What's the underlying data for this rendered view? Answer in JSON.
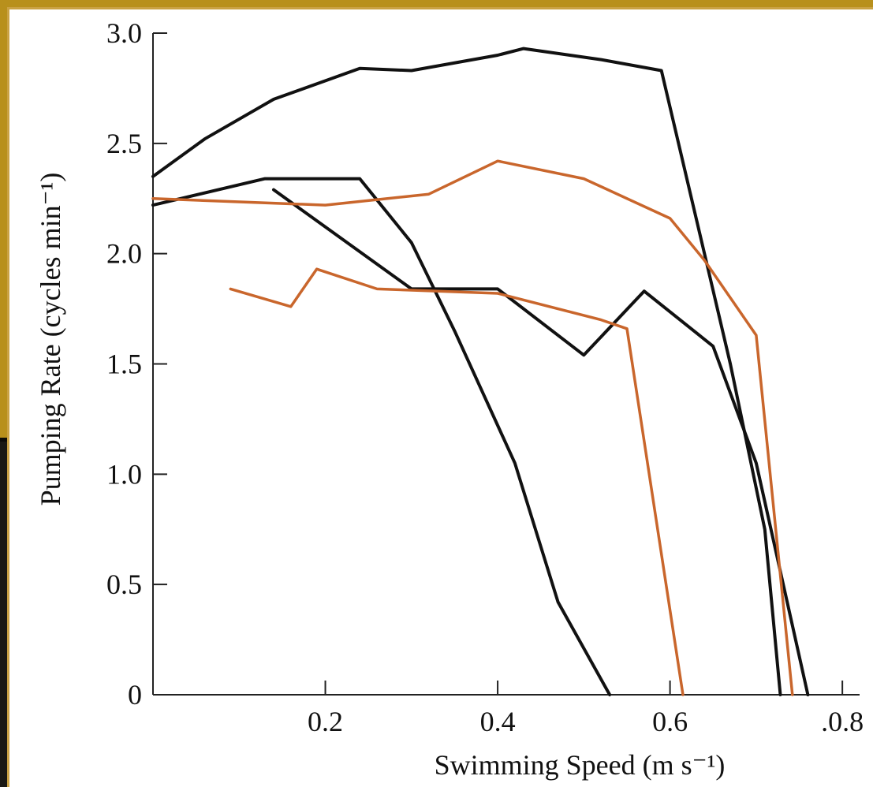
{
  "chart_data": {
    "type": "line",
    "xlabel": "Swimming Speed (m s⁻¹)",
    "ylabel": "Pumping Rate (cycles min⁻¹)",
    "xlim": [
      0,
      0.82
    ],
    "ylim": [
      0,
      3.0
    ],
    "x_ticks": [
      "0.2",
      "0.4",
      "0.6",
      ".0.8"
    ],
    "x_tick_values": [
      0.2,
      0.4,
      0.6,
      0.8
    ],
    "y_ticks": [
      "0",
      "0.5",
      "1.0",
      "1.5",
      "2.0",
      "2.5",
      "3.0"
    ],
    "y_tick_values": [
      0,
      0.5,
      1.0,
      1.5,
      2.0,
      2.5,
      3.0
    ],
    "colors": {
      "black": "#111111",
      "orange": "#c9662c"
    },
    "series": [
      {
        "color": "black",
        "points": [
          [
            0.0,
            2.35
          ],
          [
            0.06,
            2.52
          ],
          [
            0.14,
            2.7
          ],
          [
            0.24,
            2.84
          ],
          [
            0.3,
            2.83
          ],
          [
            0.4,
            2.9
          ],
          [
            0.43,
            2.93
          ],
          [
            0.52,
            2.88
          ],
          [
            0.59,
            2.83
          ],
          [
            0.64,
            2.0
          ],
          [
            0.67,
            1.5
          ],
          [
            0.71,
            0.75
          ],
          [
            0.728,
            0.0
          ]
        ]
      },
      {
        "color": "black",
        "points": [
          [
            0.0,
            2.22
          ],
          [
            0.13,
            2.34
          ],
          [
            0.24,
            2.34
          ],
          [
            0.3,
            2.05
          ],
          [
            0.35,
            1.65
          ],
          [
            0.42,
            1.05
          ],
          [
            0.47,
            0.42
          ],
          [
            0.53,
            0.0
          ]
        ]
      },
      {
        "color": "black",
        "points": [
          [
            0.14,
            2.29
          ],
          [
            0.3,
            1.84
          ],
          [
            0.4,
            1.84
          ],
          [
            0.5,
            1.54
          ],
          [
            0.57,
            1.83
          ],
          [
            0.65,
            1.58
          ],
          [
            0.7,
            1.05
          ],
          [
            0.76,
            0.0
          ]
        ]
      },
      {
        "color": "orange",
        "points": [
          [
            0.0,
            2.25
          ],
          [
            0.2,
            2.22
          ],
          [
            0.32,
            2.27
          ],
          [
            0.4,
            2.42
          ],
          [
            0.5,
            2.34
          ],
          [
            0.6,
            2.16
          ],
          [
            0.64,
            1.97
          ],
          [
            0.7,
            1.63
          ],
          [
            0.742,
            0.0
          ]
        ]
      },
      {
        "color": "orange",
        "points": [
          [
            0.09,
            1.84
          ],
          [
            0.16,
            1.76
          ],
          [
            0.19,
            1.93
          ],
          [
            0.26,
            1.84
          ],
          [
            0.4,
            1.82
          ],
          [
            0.52,
            1.7
          ],
          [
            0.55,
            1.66
          ],
          [
            0.615,
            0.0
          ]
        ]
      }
    ]
  }
}
